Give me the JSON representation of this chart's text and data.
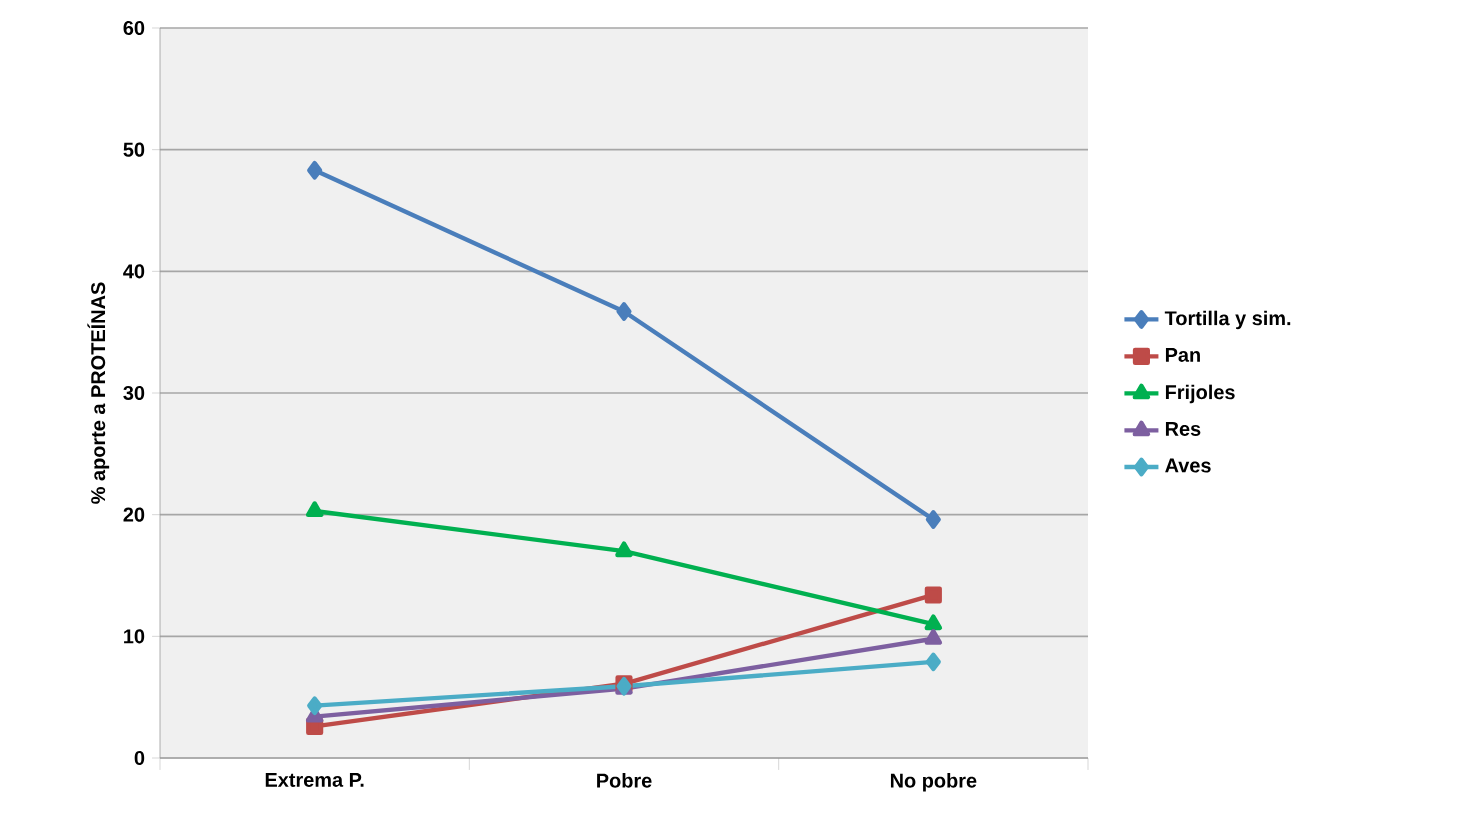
{
  "chart_data": {
    "type": "line",
    "ylabel": "% aporte a PROTEÍNAS",
    "categories": [
      "Extrema P.",
      "Pobre",
      "No pobre"
    ],
    "series": [
      {
        "name": "Tortilla y sim.",
        "color": "#4a7ebb",
        "marker": "diamond",
        "values": [
          48.3,
          36.7,
          19.6
        ]
      },
      {
        "name": "Pan",
        "color": "#be4b48",
        "marker": "square",
        "values": [
          2.6,
          6.1,
          13.4
        ]
      },
      {
        "name": "Frijoles",
        "color": "#00b050",
        "marker": "triangle",
        "values": [
          20.3,
          17.0,
          11.0
        ]
      },
      {
        "name": "Res",
        "color": "#7d5fa0",
        "marker": "triangle",
        "values": [
          3.4,
          5.7,
          9.8
        ]
      },
      {
        "name": "Aves",
        "color": "#4bacc6",
        "marker": "diamond",
        "values": [
          4.3,
          5.9,
          7.9
        ]
      }
    ],
    "ylim": [
      0,
      60
    ],
    "yticks": [
      0,
      10,
      20,
      30,
      40,
      50,
      60
    ],
    "grid": "y",
    "legend": "right"
  }
}
